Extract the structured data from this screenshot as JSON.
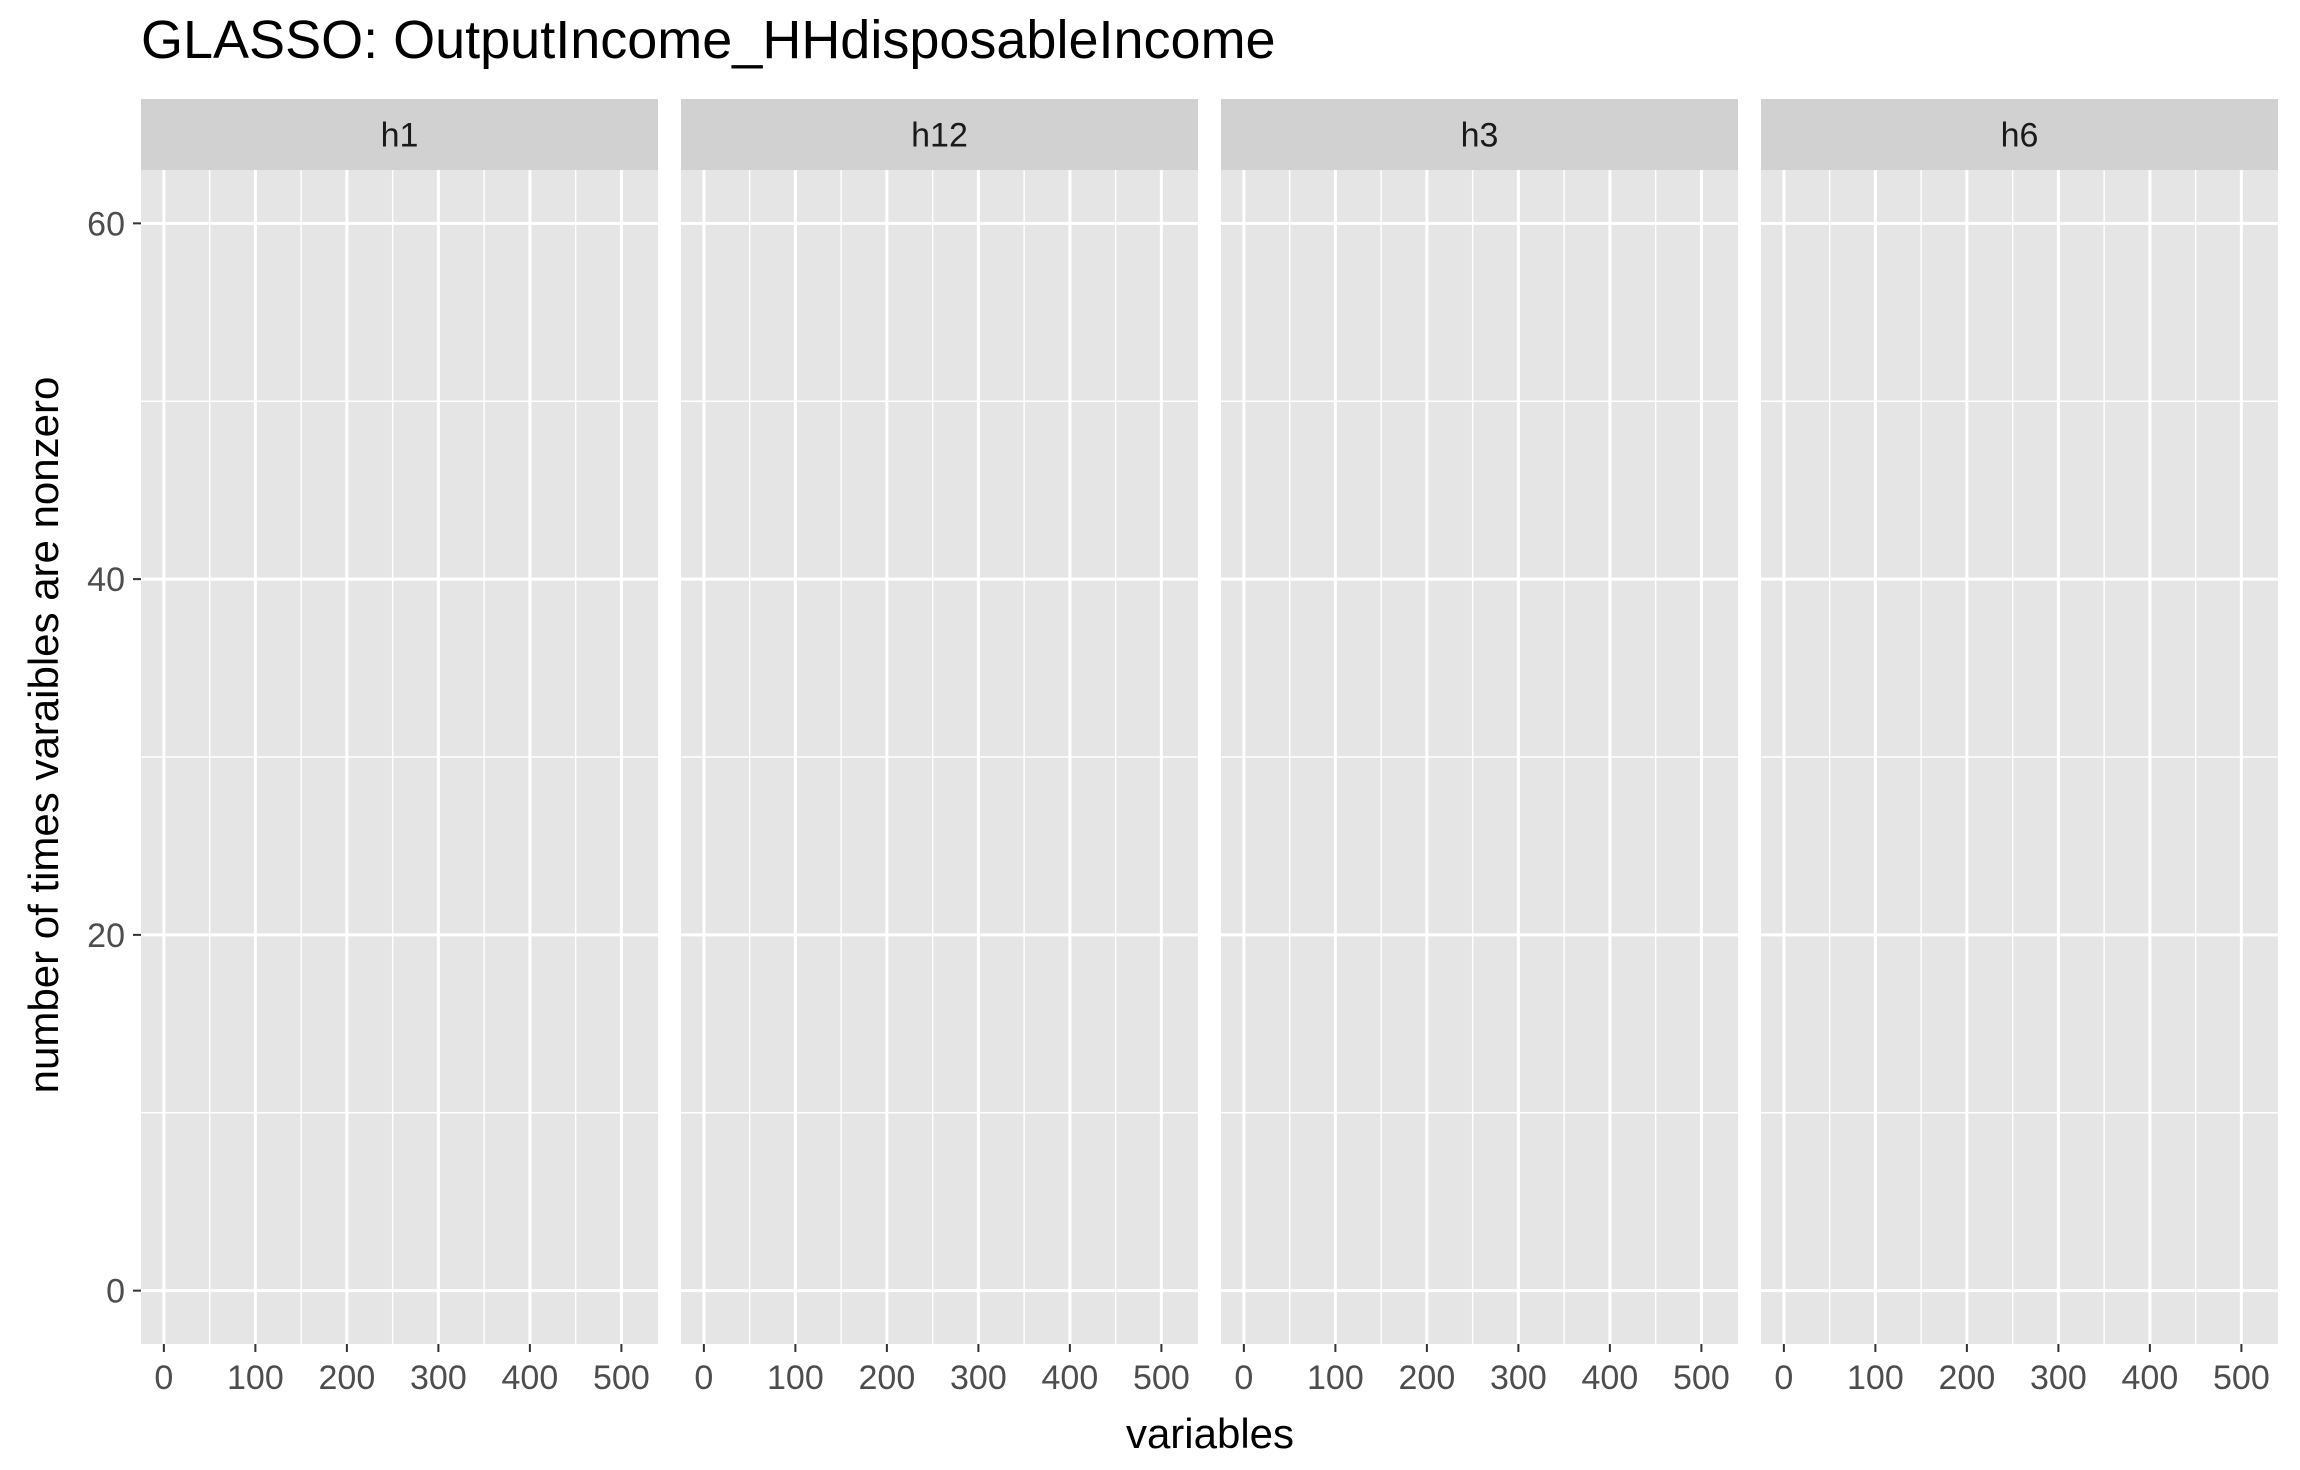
{
  "chart_data": {
    "type": "scatter",
    "title": "GLASSO: OutputIncome_HHdisposableIncome",
    "xlabel": "variables",
    "ylabel": "number of times varaibles are nonzero",
    "facets": [
      "h1",
      "h12",
      "h3",
      "h6"
    ],
    "xlim": [
      -25,
      540
    ],
    "ylim": [
      -3,
      63
    ],
    "x_ticks": [
      0,
      100,
      200,
      300,
      400,
      500
    ],
    "y_ticks": [
      0,
      20,
      40,
      60
    ],
    "grid": true,
    "series": [],
    "colors": {
      "panel_background": "#e5e5e5",
      "strip_background": "#d1d1d1",
      "gridline": "#ffffff",
      "tick_text": "#4d4d4d"
    }
  }
}
